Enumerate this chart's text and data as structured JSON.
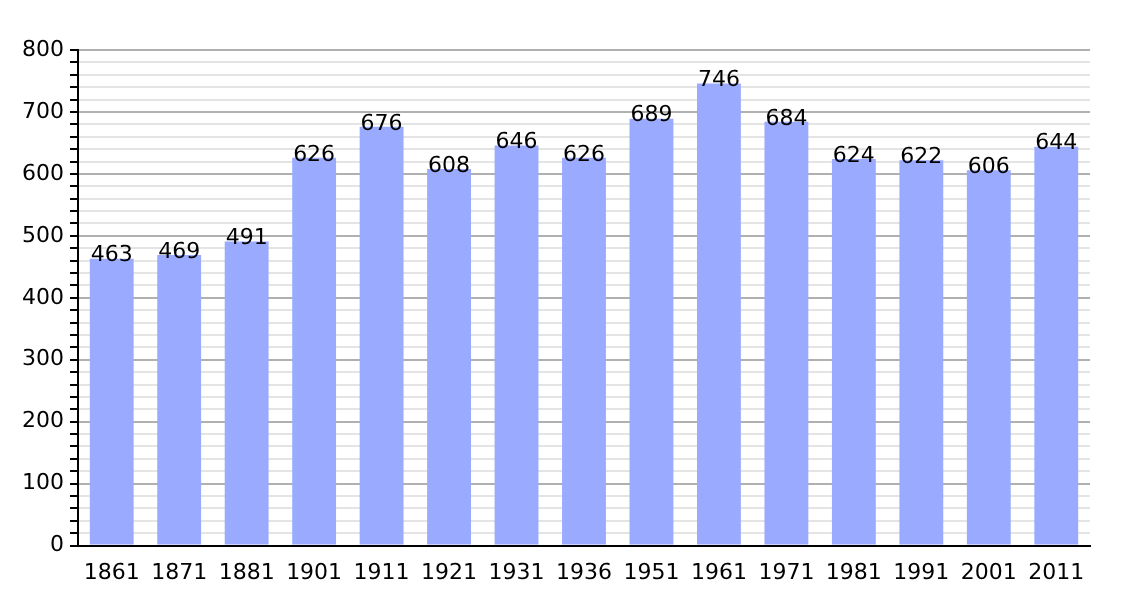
{
  "chart_data": {
    "type": "bar",
    "categories": [
      "1861",
      "1871",
      "1881",
      "1901",
      "1911",
      "1921",
      "1931",
      "1936",
      "1951",
      "1961",
      "1971",
      "1981",
      "1991",
      "2001",
      "2011"
    ],
    "values": [
      463,
      469,
      491,
      626,
      676,
      608,
      646,
      626,
      689,
      746,
      684,
      624,
      622,
      606,
      644
    ],
    "color": "#99aaff",
    "data_labels": true,
    "grid": "y",
    "legend": false,
    "ylim": [
      0,
      800
    ],
    "yticks": [
      0,
      {
        "value": 20,
        "label": null
      },
      {
        "value": 40,
        "label": null
      },
      {
        "value": 60,
        "label": null
      },
      {
        "value": 80,
        "label": null
      },
      100,
      {
        "value": 120,
        "label": null
      },
      {
        "value": 140,
        "label": null
      },
      {
        "value": 160,
        "label": null
      },
      {
        "value": 180,
        "label": null
      },
      200,
      {
        "value": 220,
        "label": null
      },
      {
        "value": 240,
        "label": null
      },
      {
        "value": 260,
        "label": null
      },
      {
        "value": 280,
        "label": null
      },
      300,
      {
        "value": 320,
        "label": null
      },
      {
        "value": 340,
        "label": null
      },
      {
        "value": 360,
        "label": null
      },
      {
        "value": 380,
        "label": null
      },
      400,
      {
        "value": 420,
        "label": null
      },
      {
        "value": 440,
        "label": null
      },
      {
        "value": 460,
        "label": null
      },
      {
        "value": 480,
        "label": null
      },
      500,
      {
        "value": 520,
        "label": null
      },
      {
        "value": 540,
        "label": null
      },
      {
        "value": 560,
        "label": null
      },
      {
        "value": 580,
        "label": null
      },
      600,
      {
        "value": 620,
        "label": null
      },
      {
        "value": 640,
        "label": null
      },
      {
        "value": 660,
        "label": null
      },
      {
        "value": 680,
        "label": null
      },
      700,
      {
        "value": 720,
        "label": null
      },
      {
        "value": 740,
        "label": null
      },
      {
        "value": 760,
        "label": null
      },
      {
        "value": 780,
        "label": null
      },
      800
    ]
  }
}
